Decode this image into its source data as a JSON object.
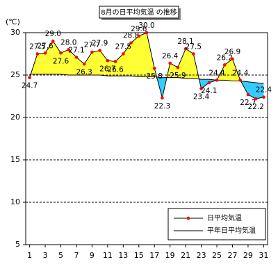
{
  "chart_data": {
    "type": "line",
    "title": "8月の日平均気温 の推移",
    "y_label": "(℃)",
    "x": [
      1,
      2,
      3,
      4,
      5,
      6,
      7,
      8,
      9,
      10,
      11,
      12,
      13,
      14,
      15,
      16,
      17,
      18,
      19,
      20,
      21,
      22,
      23,
      24,
      25,
      26,
      27,
      28,
      29,
      30,
      31
    ],
    "xlim": [
      0.5,
      31.5
    ],
    "xticks": [
      1,
      3,
      5,
      7,
      9,
      11,
      13,
      15,
      17,
      19,
      21,
      23,
      25,
      27,
      29,
      31
    ],
    "ylim": [
      5,
      30
    ],
    "yticks": [
      5,
      10,
      15,
      20,
      25,
      30
    ],
    "grid": true,
    "legend": "lower right",
    "above_color": "#ffff33",
    "below_color": "#33ccff",
    "series": [
      {
        "name": "日平均気温",
        "color": "#ff0000",
        "line_color": "#000000",
        "values": [
          24.7,
          27.5,
          27.6,
          29.0,
          27.6,
          28.0,
          27.1,
          26.3,
          27.7,
          27.9,
          26.7,
          26.6,
          27.5,
          28.8,
          29.6,
          30.0,
          25.8,
          22.3,
          26.4,
          25.9,
          28.1,
          27.5,
          23.4,
          24.1,
          24.4,
          26.2,
          26.9,
          24.4,
          22.7,
          22.2,
          22.4
        ],
        "value_labels": [
          "24.7",
          "27.5",
          "27.6",
          "29.0",
          "27.6",
          "28.0",
          "27.1",
          "26.3",
          "27.7",
          "27.9",
          "26.7",
          "26.6",
          "27.5",
          "28.8",
          "29.6",
          "30.0",
          "25.8",
          "22.3",
          "26.4",
          "25.9",
          "28.1",
          "27.5",
          "23.4",
          "24.1",
          "24.4",
          "26.2",
          "26.9",
          "24.4",
          "22.7",
          "22.2",
          "22.4"
        ]
      },
      {
        "name": "平年日平均気温",
        "color": "#000000",
        "values": [
          25.1,
          25.1,
          25.1,
          25.1,
          25.1,
          25.0,
          25.0,
          25.0,
          25.0,
          25.0,
          24.9,
          24.9,
          24.9,
          24.9,
          24.8,
          24.8,
          24.8,
          24.7,
          24.7,
          24.7,
          24.6,
          24.6,
          24.5,
          24.5,
          24.4,
          24.4,
          24.3,
          24.3,
          24.2,
          24.1,
          24.0
        ]
      }
    ]
  }
}
